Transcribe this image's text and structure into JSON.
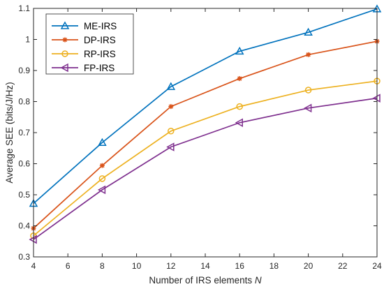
{
  "chart_data": {
    "type": "line",
    "xlabel": "Number of IRS elements ",
    "xlabel_var": "N",
    "ylabel": "Average SEE (bits/J/Hz)",
    "x": [
      4,
      8,
      12,
      16,
      20,
      24
    ],
    "xlim": [
      4,
      24
    ],
    "ylim": [
      0.3,
      1.1
    ],
    "xticks": [
      "4",
      "6",
      "8",
      "10",
      "12",
      "14",
      "16",
      "18",
      "20",
      "22",
      "24"
    ],
    "yticks": [
      "0.3",
      "0.4",
      "0.5",
      "0.6",
      "0.7",
      "0.8",
      "0.9",
      "1",
      "1.1"
    ],
    "grid": false,
    "legend_position": "top-left",
    "series": [
      {
        "name": "ME-IRS",
        "color": "#0072BD",
        "marker": "triangle-up",
        "values": [
          0.472,
          0.668,
          0.848,
          0.962,
          1.023,
          1.098
        ]
      },
      {
        "name": "DP-IRS",
        "color": "#D95319",
        "marker": "asterisk",
        "values": [
          0.392,
          0.594,
          0.784,
          0.874,
          0.951,
          0.994
        ]
      },
      {
        "name": "RP-IRS",
        "color": "#EDB120",
        "marker": "circle",
        "values": [
          0.368,
          0.552,
          0.705,
          0.784,
          0.837,
          0.866
        ]
      },
      {
        "name": "FP-IRS",
        "color": "#7E2F8E",
        "marker": "triangle-left",
        "values": [
          0.356,
          0.516,
          0.654,
          0.732,
          0.779,
          0.811
        ]
      }
    ]
  }
}
